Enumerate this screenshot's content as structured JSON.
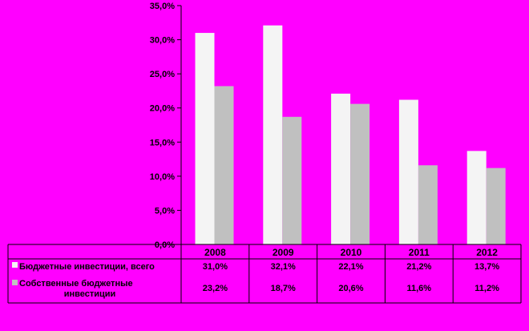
{
  "chart_data": {
    "type": "bar",
    "categories": [
      "2008",
      "2009",
      "2010",
      "2011",
      "2012"
    ],
    "series": [
      {
        "name": "Бюджетные инвестиции, всего",
        "values": [
          31.0,
          32.1,
          22.1,
          21.2,
          13.7
        ],
        "labels": [
          "31,0%",
          "32,1%",
          "22,1%",
          "21,2%",
          "13,7%"
        ],
        "color": "#f4f4f4"
      },
      {
        "name_lines": [
          "Собственные бюджетные",
          "инвестиции"
        ],
        "values": [
          23.2,
          18.7,
          20.6,
          11.6,
          11.2
        ],
        "labels": [
          "23,2%",
          "18,7%",
          "20,6%",
          "11,6%",
          "11,2%"
        ],
        "color": "#c0c0c0"
      }
    ],
    "y_ticks": [
      "0,0%",
      "5,0%",
      "10,0%",
      "15,0%",
      "20,0%",
      "25,0%",
      "30,0%",
      "35,0%"
    ],
    "ylim": [
      0,
      35
    ],
    "grid": false,
    "legend": "data table below plot",
    "colors": {
      "background": "#ff00ff",
      "series1": "#f4f4f4",
      "series2": "#c0c0c0",
      "lines": "#000000"
    }
  }
}
